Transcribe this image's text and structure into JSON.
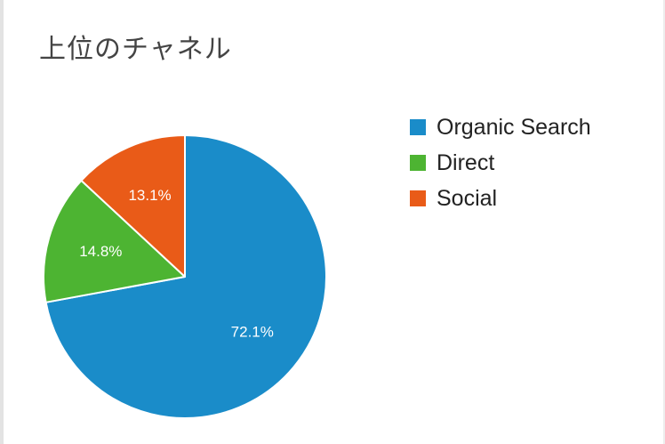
{
  "widget": {
    "title": "上位のチャネル"
  },
  "chart_data": {
    "type": "pie",
    "title": "上位のチャネル",
    "legend_position": "right",
    "start_angle_deg": 0,
    "direction": "clockwise",
    "slices": [
      {
        "label": "Organic Search",
        "value": 72.1,
        "display": "72.1%",
        "color": "#1a8cc9"
      },
      {
        "label": "Direct",
        "value": 14.8,
        "display": "14.8%",
        "color": "#4db432"
      },
      {
        "label": "Social",
        "value": 13.1,
        "display": "13.1%",
        "color": "#e95b18"
      }
    ]
  }
}
